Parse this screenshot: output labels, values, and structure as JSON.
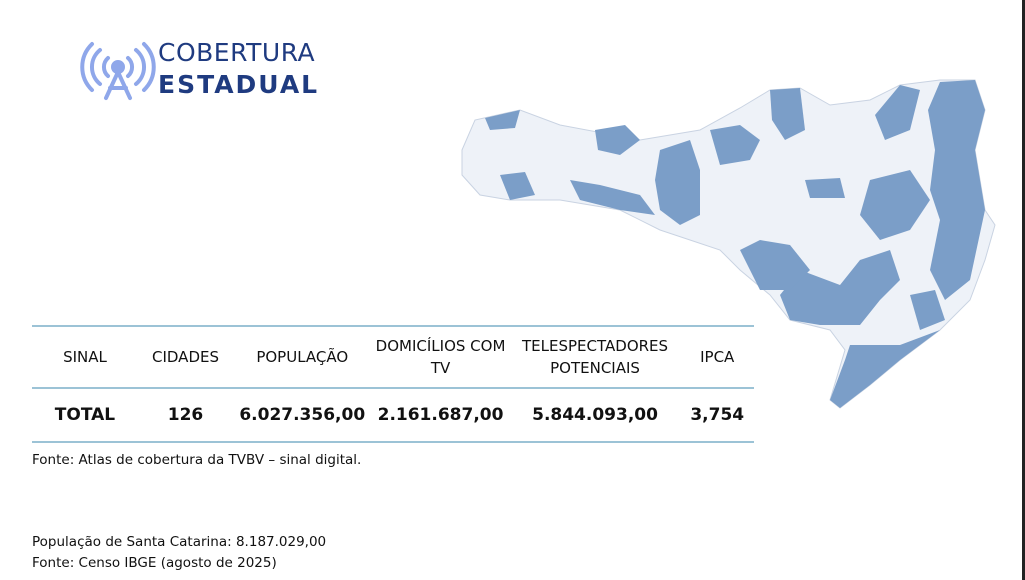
{
  "header": {
    "title": [
      "COBERTURA",
      "ESTADUAL"
    ]
  },
  "table": {
    "headers": [
      "SINAL",
      "CIDADES",
      "POPULAÇÃO",
      "DOMICÍLIOS COM TV",
      "TELESPECTADORES POTENCIAIS",
      "IPCA"
    ],
    "rows": [
      [
        "TOTAL",
        "126",
        "6.027.356,00",
        "2.161.687,00",
        "5.844.093,00",
        "3,754"
      ]
    ]
  },
  "source": "Fonte: Atlas de cobertura da TVBV – sinal digital.",
  "notes": [
    "População de Santa Catarina: 8.187.029,00",
    "Fonte: Censo IBGE (agosto de 2025)"
  ]
}
